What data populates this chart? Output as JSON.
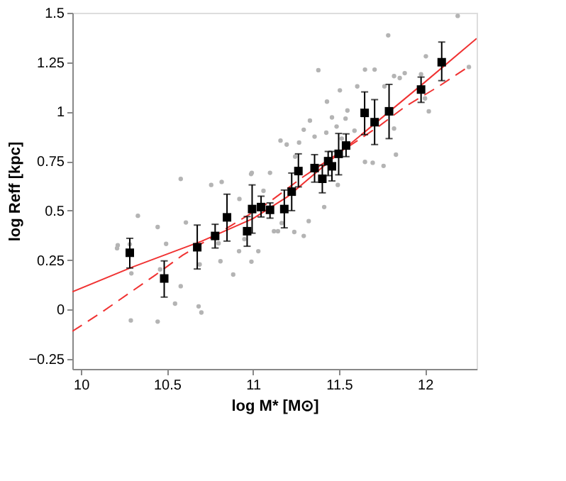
{
  "chart_data": {
    "type": "scatter",
    "xlabel": "log M* [M⊙]",
    "ylabel": "log Reff [kpc]",
    "xlim": [
      9.95,
      12.3
    ],
    "ylim": [
      -0.3,
      1.5
    ],
    "xticks": [
      10,
      10.5,
      11,
      11.5,
      12
    ],
    "yticks": [
      {
        "value": -0.25,
        "label": "−0.25"
      },
      0,
      0.25,
      0.5,
      0.75,
      1,
      1.25,
      1.5
    ],
    "grid": false,
    "series": [
      {
        "marker": "circle",
        "color": "#b4b4b4",
        "x": [
          10.214,
          10.21,
          10.284,
          10.331,
          10.293,
          10.29,
          10.446,
          10.46,
          10.495,
          10.446,
          10.547,
          10.58,
          10.58,
          10.61,
          10.684,
          10.7,
          10.69,
          10.757,
          10.811,
          10.818,
          10.885,
          10.921,
          10.989,
          10.991,
          10.919,
          11.031,
          11.061,
          10.95,
          10.8,
          11.122,
          11.324,
          11.414,
          11.295,
          11.24,
          11.493,
          11.167,
          11.145,
          11.786,
          12.19,
          12.005,
          12.255,
          11.38,
          11.651,
          11.707,
          11.82,
          11.853,
          11.882,
          11.505,
          11.606,
          11.764,
          11.43,
          11.331,
          11.295,
          11.459,
          11.549,
          11.358,
          11.426,
          11.16,
          11.196,
          11.486,
          11.538,
          11.59,
          11.651,
          11.696,
          11.759,
          11.831,
          11.82,
          11.977,
          12.022,
          12.0,
          10.993,
          11.099,
          11.245,
          11.268,
          11.516
        ],
        "values": [
          0.325,
          0.31,
          0.33,
          0.474,
          0.183,
          -0.055,
          0.417,
          0.203,
          0.332,
          -0.061,
          0.03,
          0.118,
          0.66,
          0.44,
          0.016,
          -0.015,
          0.228,
          0.63,
          0.244,
          0.645,
          0.177,
          0.559,
          0.685,
          0.242,
          0.295,
          0.295,
          0.6,
          0.356,
          0.335,
          0.396,
          0.447,
          0.518,
          0.372,
          0.392,
          0.63,
          0.437,
          0.396,
          1.386,
          1.484,
          1.28,
          1.226,
          1.21,
          1.213,
          1.213,
          1.18,
          1.17,
          1.195,
          1.108,
          1.128,
          1.128,
          1.051,
          0.955,
          0.909,
          0.971,
          1.006,
          0.874,
          0.894,
          0.854,
          0.834,
          0.925,
          0.965,
          0.904,
          0.746,
          0.742,
          0.726,
          0.783,
          0.915,
          1.189,
          1.002,
          1.067,
          0.691,
          0.691,
          0.773,
          0.844,
          0.864
        ]
      },
      {
        "type": "line",
        "line_style": "solid",
        "color": "#f03232",
        "x": [
          9.95,
          10.3,
          10.7,
          11.0,
          11.2,
          11.5,
          12.0,
          12.3
        ],
        "values": [
          0.09,
          0.215,
          0.345,
          0.46,
          0.57,
          0.79,
          1.15,
          1.37
        ]
      },
      {
        "type": "line",
        "line_style": "dashed",
        "color": "#f03232",
        "x": [
          9.95,
          10.11,
          10.43,
          10.59,
          11.09,
          11.29,
          11.73,
          11.885,
          12.08,
          12.24
        ],
        "values": [
          -0.11,
          -0.02,
          0.173,
          0.274,
          0.54,
          0.67,
          0.925,
          1.026,
          1.128,
          1.22
        ]
      },
      {
        "type": "scatter",
        "marker": "square",
        "color": "#000000",
        "x": [
          10.284,
          10.484,
          10.676,
          10.78,
          10.849,
          10.966,
          10.995,
          11.047,
          11.099,
          11.182,
          11.225,
          11.264,
          11.358,
          11.403,
          11.437,
          11.459,
          11.498,
          11.541,
          11.649,
          11.707,
          11.791,
          11.977,
          12.097
        ],
        "values": [
          0.287,
          0.157,
          0.315,
          0.372,
          0.466,
          0.396,
          0.508,
          0.518,
          0.504,
          0.508,
          0.596,
          0.7,
          0.715,
          0.661,
          0.75,
          0.724,
          0.787,
          0.829,
          0.994,
          0.947,
          1.002,
          1.112,
          1.25
        ],
        "errors": [
          [
            0.21,
            0.36
          ],
          [
            0.063,
            0.246
          ],
          [
            0.205,
            0.427
          ],
          [
            0.311,
            0.431
          ],
          [
            0.346,
            0.583
          ],
          [
            0.32,
            0.47
          ],
          [
            0.386,
            0.63
          ],
          [
            0.468,
            0.573
          ],
          [
            0.462,
            0.539
          ],
          [
            0.413,
            0.604
          ],
          [
            0.5,
            0.69
          ],
          [
            0.62,
            0.787
          ],
          [
            0.644,
            0.783
          ],
          [
            0.59,
            0.73
          ],
          [
            0.677,
            0.799
          ],
          [
            0.65,
            0.799
          ],
          [
            0.681,
            0.89
          ],
          [
            0.773,
            0.888
          ],
          [
            0.884,
            1.1
          ],
          [
            0.834,
            1.061
          ],
          [
            0.864,
            1.138
          ],
          [
            1.047,
            1.175
          ],
          [
            1.157,
            1.352
          ]
        ]
      }
    ]
  }
}
